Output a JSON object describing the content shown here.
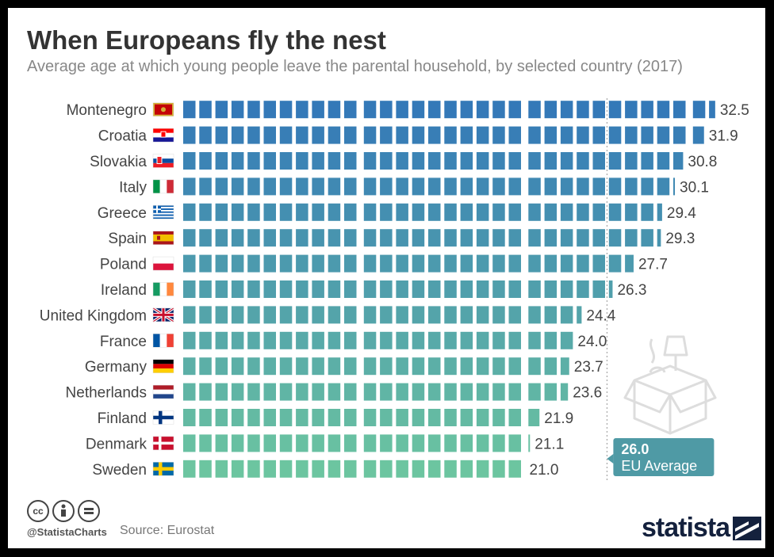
{
  "title": "When Europeans fly the nest",
  "subtitle": "Average age at which young people leave the parental household, by selected country (2017)",
  "source": "Source: Eurostat",
  "handle": "@StatistaCharts",
  "brand": "statista",
  "license_icons": [
    "cc-icon",
    "by-icon",
    "nd-icon"
  ],
  "colors": {
    "top": "#3479b8",
    "bottom": "#6cc5a0",
    "annotation": "#4f9aa5"
  },
  "chart_data": {
    "type": "bar",
    "orientation": "horizontal",
    "title": "When Europeans fly the nest",
    "categories": [
      "Montenegro",
      "Croatia",
      "Slovakia",
      "Italy",
      "Greece",
      "Spain",
      "Poland",
      "Ireland",
      "United Kingdom",
      "France",
      "Germany",
      "Netherlands",
      "Finland",
      "Denmark",
      "Sweden"
    ],
    "values": [
      32.5,
      31.9,
      30.8,
      30.1,
      29.4,
      29.3,
      27.7,
      26.3,
      24.4,
      24.0,
      23.7,
      23.6,
      21.9,
      21.1,
      21.0
    ],
    "value_labels": [
      "32.5",
      "31.9",
      "30.8",
      "30.1",
      "29.4",
      "29.3",
      "27.7",
      "26.3",
      "24.4",
      "24.0",
      "23.7",
      "23.6",
      "21.9",
      "21.1",
      "21.0"
    ],
    "reference_line": {
      "value": 26.0,
      "value_label": "26.0",
      "label": "EU Average"
    },
    "unit": "years",
    "style": "one block per year of age"
  }
}
